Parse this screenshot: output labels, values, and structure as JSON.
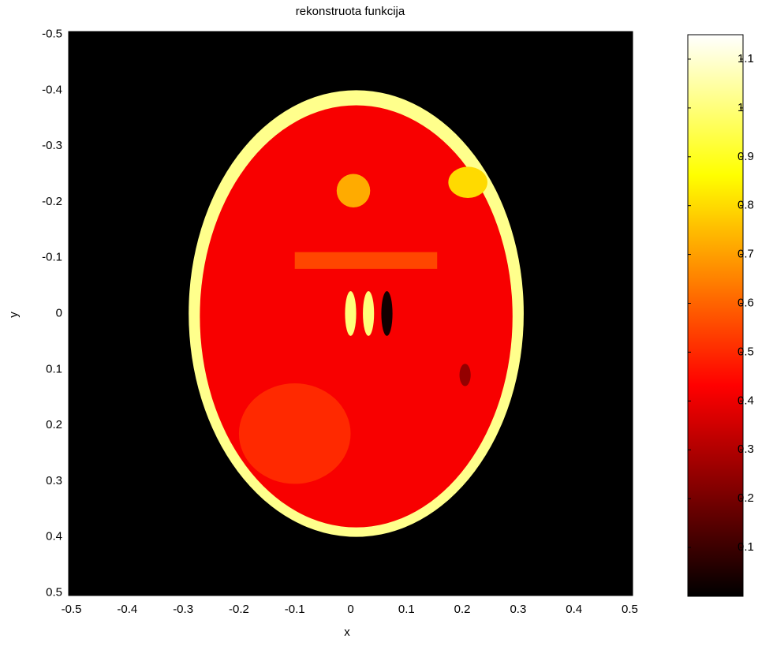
{
  "chart_data": {
    "type": "image",
    "title": "rekonstruota funkcija",
    "xlabel": "x",
    "ylabel": "y",
    "colormap": "hot",
    "background": 0,
    "xlim": [
      -0.505,
      0.505
    ],
    "ylim": [
      -0.505,
      0.505
    ],
    "y_reversed": true,
    "xticks": [
      -0.5,
      -0.4,
      -0.3,
      -0.2,
      -0.1,
      0,
      0.1,
      0.2,
      0.3,
      0.4,
      0.5
    ],
    "yticks": [
      -0.5,
      -0.4,
      -0.3,
      -0.2,
      -0.1,
      0,
      0.1,
      0.2,
      0.3,
      0.4,
      0.5
    ],
    "shapes": [
      {
        "shape": "ellipse",
        "cx": 0.01,
        "cy": 0.0,
        "rx": 0.3,
        "ry": 0.4,
        "value": 1.02
      },
      {
        "shape": "ellipse",
        "cx": 0.01,
        "cy": 0.005,
        "rx": 0.28,
        "ry": 0.378,
        "value": 0.42
      },
      {
        "shape": "ellipse",
        "cx": 0.005,
        "cy": -0.22,
        "rx": 0.03,
        "ry": 0.03,
        "value": 0.72
      },
      {
        "shape": "ellipse",
        "cx": 0.21,
        "cy": -0.235,
        "rx": 0.035,
        "ry": 0.028,
        "value": 0.8
      },
      {
        "shape": "rect",
        "x0": -0.1,
        "x1": 0.155,
        "y0": -0.11,
        "y1": -0.08,
        "value": 0.55
      },
      {
        "shape": "ellipse",
        "cx": 0.0,
        "cy": 0.0,
        "rx": 0.01,
        "ry": 0.04,
        "value": 1.0
      },
      {
        "shape": "ellipse",
        "cx": 0.032,
        "cy": 0.0,
        "rx": 0.01,
        "ry": 0.04,
        "value": 1.0
      },
      {
        "shape": "ellipse",
        "cx": 0.065,
        "cy": 0.0,
        "rx": 0.01,
        "ry": 0.04,
        "value": 0.03
      },
      {
        "shape": "ellipse",
        "cx": 0.205,
        "cy": 0.11,
        "rx": 0.01,
        "ry": 0.02,
        "value": 0.25
      },
      {
        "shape": "ellipse",
        "cx": -0.1,
        "cy": 0.215,
        "rx": 0.1,
        "ry": 0.09,
        "value": 0.5
      }
    ],
    "clim": [
      0,
      1.15
    ],
    "cticks": [
      0.1,
      0.2,
      0.3,
      0.4,
      0.5,
      0.6,
      0.7,
      0.8,
      0.9,
      1,
      1.1
    ]
  }
}
